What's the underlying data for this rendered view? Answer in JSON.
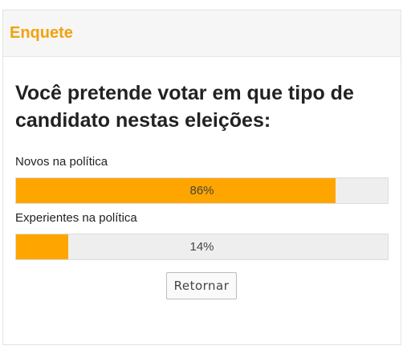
{
  "widget": {
    "title": "Enquete"
  },
  "poll": {
    "question": "Você pretende votar em que tipo de candidato nestas eleições:",
    "options": [
      {
        "label": "Novos na política",
        "percent": 86,
        "percent_text": "86%"
      },
      {
        "label": "Experientes na política",
        "percent": 14,
        "percent_text": "14%"
      }
    ],
    "bar_color": "#ffa500",
    "accent_color": "#f2a20c"
  },
  "actions": {
    "return_label": "Retornar"
  }
}
